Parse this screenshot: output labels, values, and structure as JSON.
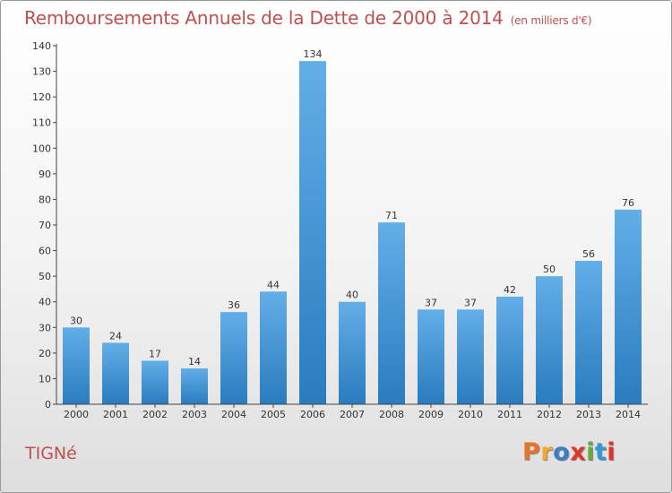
{
  "header": {
    "title": "Remboursements Annuels de la Dette de 2000 à 2014",
    "unit": "(en milliers d'€)"
  },
  "footer": {
    "commune": "TIGNé",
    "logo": "Proxiti",
    "logo_colors": [
      "#e8742a",
      "#f0a830",
      "#3a7fc4",
      "#e4332a",
      "#6aaa3a",
      "#2f9ad6",
      "#e4332a"
    ]
  },
  "colors": {
    "title": "#c0504d",
    "bar_top": "#62aee8",
    "bar_bottom": "#2a7cbe",
    "axis": "#444444"
  },
  "chart_data": {
    "type": "bar",
    "title": "Remboursements Annuels de la Dette de 2000 à 2014",
    "subtitle": "(en milliers d'€)",
    "categories": [
      "2000",
      "2001",
      "2002",
      "2003",
      "2004",
      "2005",
      "2006",
      "2007",
      "2008",
      "2009",
      "2010",
      "2011",
      "2012",
      "2013",
      "2014"
    ],
    "values": [
      30,
      24,
      17,
      14,
      36,
      44,
      134,
      40,
      71,
      37,
      37,
      42,
      50,
      56,
      76
    ],
    "ylim": [
      0,
      140
    ],
    "yticks": [
      0,
      10,
      20,
      30,
      40,
      50,
      60,
      70,
      80,
      90,
      100,
      110,
      120,
      130,
      140
    ],
    "grid": false,
    "data_labels": true
  }
}
